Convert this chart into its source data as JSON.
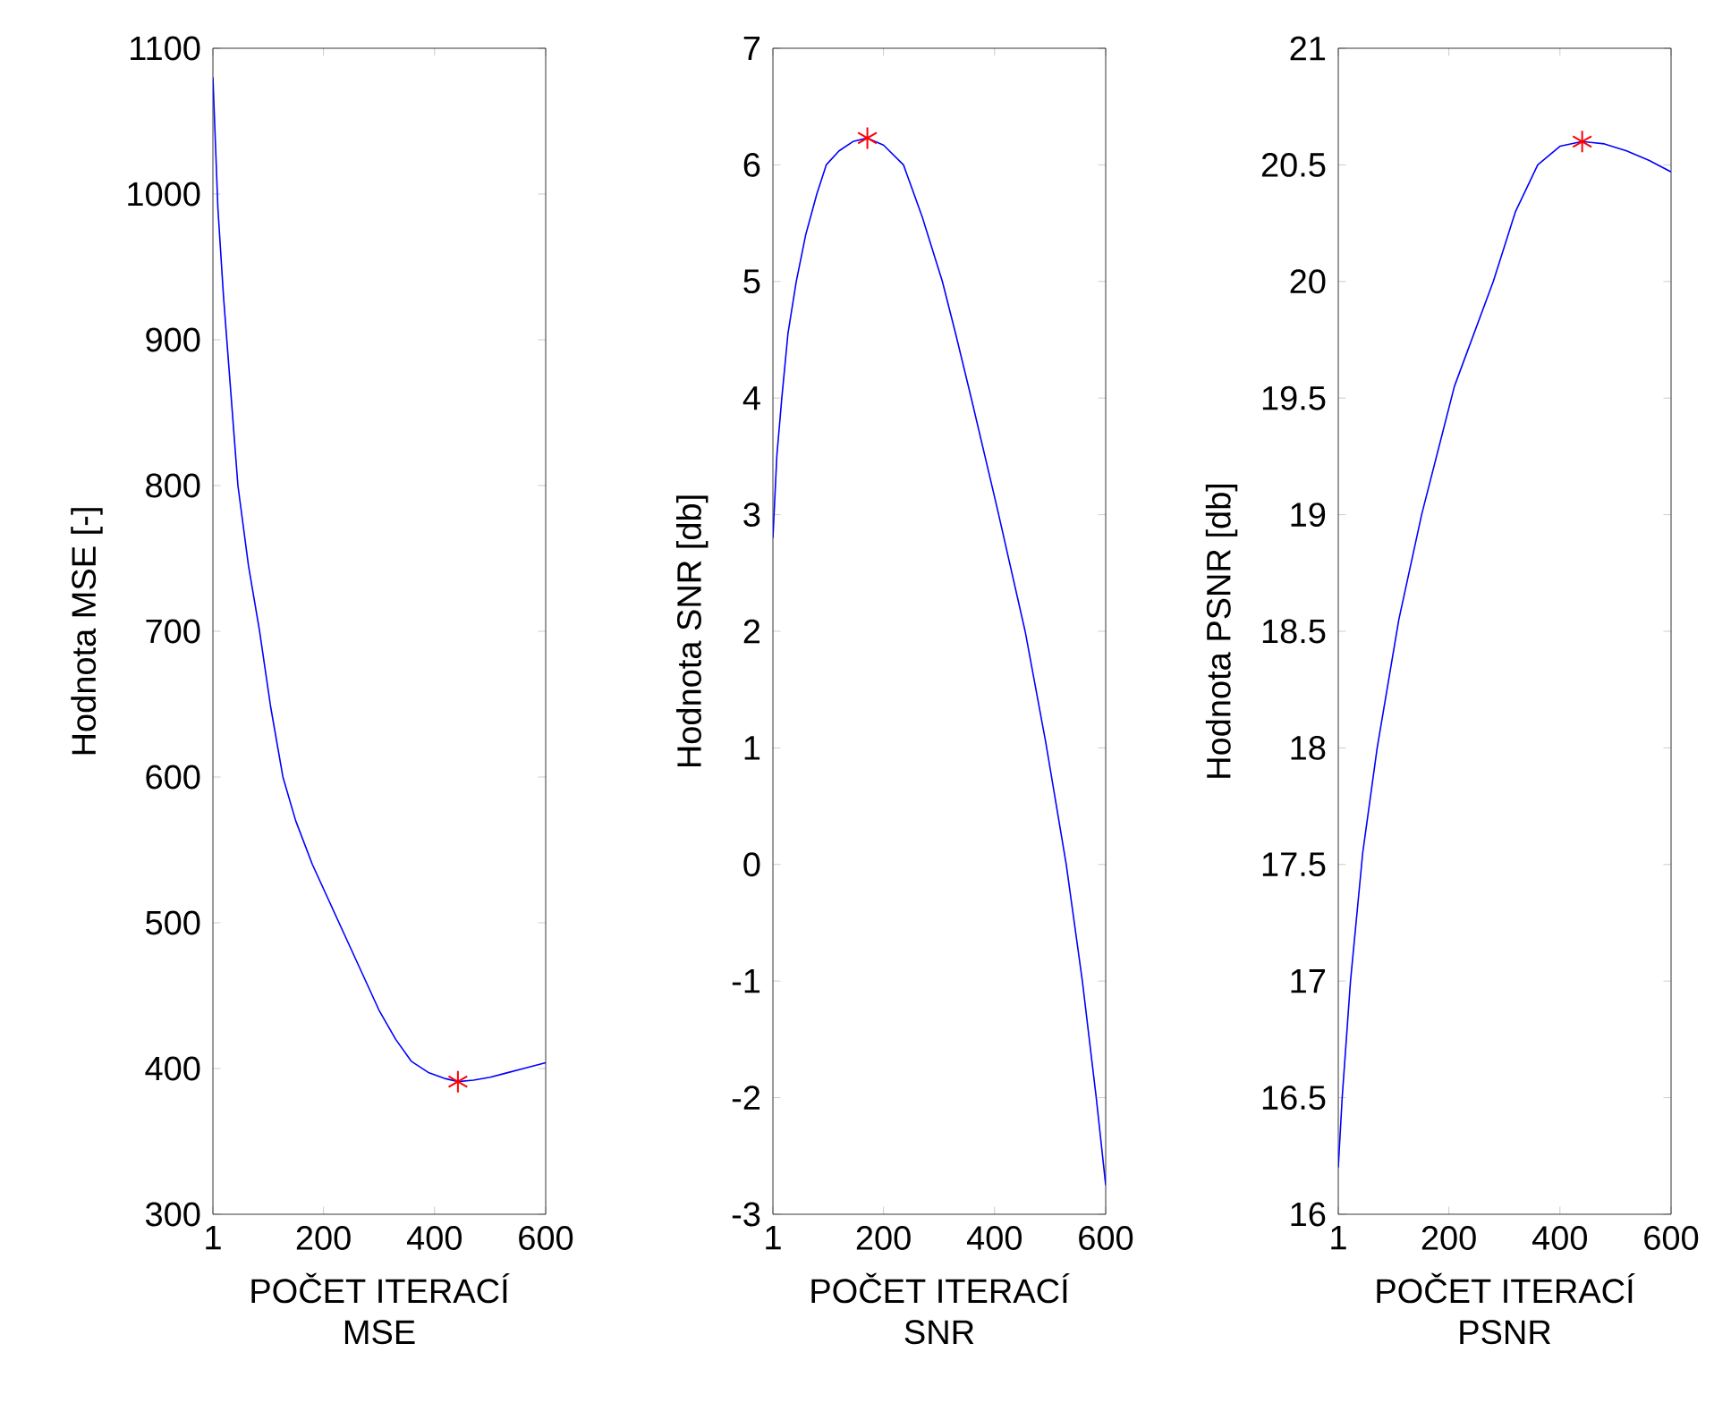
{
  "chart_data": [
    {
      "type": "line",
      "xlabel": "POČET ITERACÍ",
      "ylabel": "Hodnota MSE [-]",
      "annotations": [
        "MSE"
      ],
      "xlim": [
        1,
        600
      ],
      "ylim": [
        300,
        1100
      ],
      "xticks": [
        1,
        200,
        400,
        600
      ],
      "yticks": [
        300,
        400,
        500,
        600,
        700,
        800,
        900,
        1000,
        1100
      ],
      "grid": false,
      "series": [
        {
          "type": "line",
          "color": "#0000ff",
          "marker": "none",
          "x": [
            1,
            10,
            20,
            30,
            46,
            65,
            85,
            105,
            127,
            150,
            180,
            210,
            240,
            270,
            300,
            330,
            358,
            390,
            420,
            442,
            470,
            500,
            530,
            560,
            600
          ],
          "values": [
            1080,
            990,
            930,
            880,
            800,
            745,
            700,
            648,
            600,
            570,
            540,
            515,
            490,
            465,
            440,
            420,
            405,
            397,
            393,
            391,
            392,
            394,
            397,
            400,
            404
          ]
        },
        {
          "type": "scatter",
          "color": "#ff0000",
          "marker": "cross",
          "x": [
            442
          ],
          "values": [
            391
          ]
        }
      ]
    },
    {
      "type": "line",
      "xlabel": "POČET ITERACÍ",
      "ylabel": "Hodnota SNR [db]",
      "annotations": [
        "SNR"
      ],
      "xlim": [
        1,
        600
      ],
      "ylim": [
        -3,
        7
      ],
      "xticks": [
        1,
        200,
        400,
        600
      ],
      "yticks": [
        -3,
        -2,
        -1,
        0,
        1,
        2,
        3,
        4,
        5,
        6,
        7
      ],
      "grid": false,
      "series": [
        {
          "type": "line",
          "color": "#0000ff",
          "marker": "none",
          "x": [
            1,
            8,
            17,
            28,
            43,
            60,
            80,
            97,
            120,
            145,
            171,
            200,
            236,
            270,
            306,
            330,
            358,
            405,
            455,
            492,
            529,
            558,
            583,
            600
          ],
          "values": [
            2.8,
            3.5,
            4,
            4.55,
            5,
            5.4,
            5.75,
            6,
            6.12,
            6.2,
            6.23,
            6.17,
            6,
            5.55,
            5,
            4.55,
            4,
            3.05,
            2,
            1.05,
            0,
            -1,
            -2,
            -2.75
          ]
        },
        {
          "type": "scatter",
          "color": "#ff0000",
          "marker": "cross",
          "x": [
            171
          ],
          "values": [
            6.23
          ]
        }
      ]
    },
    {
      "type": "line",
      "xlabel": "POČET ITERACÍ",
      "ylabel": "Hodnota PSNR [db]",
      "annotations": [
        "PSNR"
      ],
      "xlim": [
        1,
        600
      ],
      "ylim": [
        16,
        21
      ],
      "xticks": [
        1,
        200,
        400,
        600
      ],
      "yticks": [
        16,
        16.5,
        17,
        17.5,
        18,
        18.5,
        19,
        19.5,
        20,
        20.5,
        21
      ],
      "grid": false,
      "series": [
        {
          "type": "line",
          "color": "#0000ff",
          "marker": "none",
          "x": [
            1,
            8,
            23,
            45,
            71,
            110,
            151,
            210,
            280,
            320,
            360,
            400,
            440,
            480,
            520,
            560,
            600
          ],
          "values": [
            16.2,
            16.5,
            17,
            17.55,
            18,
            18.55,
            19,
            19.55,
            20,
            20.3,
            20.5,
            20.58,
            20.6,
            20.59,
            20.56,
            20.52,
            20.47
          ]
        },
        {
          "type": "scatter",
          "color": "#ff0000",
          "marker": "cross",
          "x": [
            440
          ],
          "values": [
            20.6
          ]
        }
      ]
    }
  ]
}
